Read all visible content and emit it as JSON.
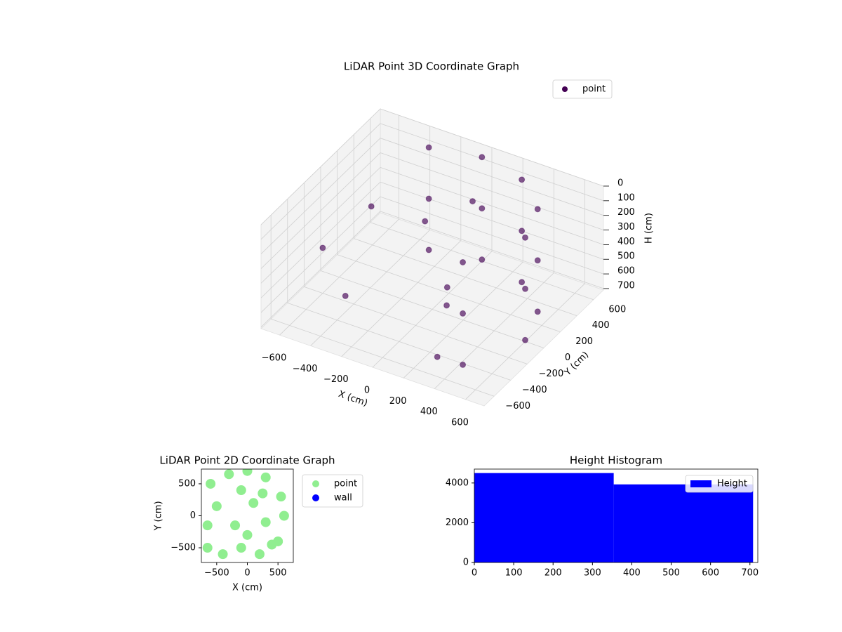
{
  "chart_data": [
    {
      "type": "scatter3d",
      "title": "LiDAR Point 3D Coordinate Graph",
      "xlabel": "X (cm)",
      "ylabel": "Y (cm)",
      "zlabel": "H (cm)",
      "xlim": [
        -720,
        720
      ],
      "ylim": [
        -720,
        720
      ],
      "zlim": [
        710,
        0
      ],
      "xticks": [
        {
          "value": -600,
          "label": "−600"
        },
        {
          "value": -400,
          "label": "−400"
        },
        {
          "value": -200,
          "label": "−200"
        },
        0,
        200,
        400,
        600
      ],
      "yticks": [
        {
          "value": -600,
          "label": "−600"
        },
        {
          "value": -400,
          "label": "−400"
        },
        {
          "value": -200,
          "label": "−200"
        },
        0,
        200,
        400,
        600
      ],
      "zticks": [
        0,
        100,
        200,
        300,
        400,
        500,
        600,
        700
      ],
      "grid": true,
      "legend": "upper right",
      "series": [
        {
          "name": "point",
          "color": "#440154",
          "x": [
            600,
            600,
            600,
            520,
            520,
            520,
            300,
            300,
            300,
            0,
            0,
            0,
            -300,
            -300,
            -300,
            424,
            424,
            424,
            -100,
            200,
            -400,
            100,
            -600,
            300,
            -500,
            150
          ],
          "y": [
            0,
            0,
            0,
            300,
            300,
            300,
            520,
            520,
            520,
            600,
            600,
            600,
            520,
            520,
            520,
            -424,
            -424,
            -424,
            100,
            -200,
            -300,
            300,
            -200,
            -500,
            200,
            -100
          ],
          "z": [
            0,
            350,
            700,
            0,
            350,
            700,
            0,
            350,
            700,
            0,
            350,
            700,
            0,
            350,
            700,
            0,
            350,
            700,
            200,
            500,
            600,
            100,
            400,
            650,
            300,
            450
          ]
        }
      ]
    },
    {
      "type": "scatter",
      "title": "LiDAR Point 2D Coordinate Graph",
      "xlabel": "X (cm)",
      "ylabel": "Y (cm)",
      "xlim": [
        -750,
        750
      ],
      "ylim": [
        -730,
        730
      ],
      "xticks": [
        {
          "value": -500,
          "label": "−500"
        },
        0,
        500
      ],
      "yticks": [
        {
          "value": -500,
          "label": "−500"
        },
        0,
        500
      ],
      "legend": "outside right",
      "series": [
        {
          "name": "point",
          "color": "#90ee90",
          "x": [
            -600,
            -300,
            0,
            300,
            550,
            600,
            500,
            200,
            -100,
            -400,
            -650,
            -650,
            -200,
            100,
            300,
            -100,
            400,
            0,
            -500,
            250
          ],
          "y": [
            500,
            650,
            700,
            600,
            300,
            0,
            -400,
            -600,
            -500,
            -600,
            -500,
            -150,
            -150,
            200,
            -100,
            400,
            -450,
            -300,
            150,
            350
          ]
        },
        {
          "name": "wall",
          "color": "#0000ff",
          "x": [],
          "y": []
        }
      ]
    },
    {
      "type": "histogram",
      "title": "Height Histogram",
      "bins": [
        0,
        354,
        708
      ],
      "counts": [
        4500,
        3930
      ],
      "color": "#0000ff",
      "name": "Height",
      "xlim": [
        0,
        720
      ],
      "ylim": [
        0,
        4700
      ],
      "xticks": [
        0,
        100,
        200,
        300,
        400,
        500,
        600,
        700
      ],
      "yticks": [
        0,
        2000,
        4000
      ],
      "legend": "upper right"
    }
  ]
}
